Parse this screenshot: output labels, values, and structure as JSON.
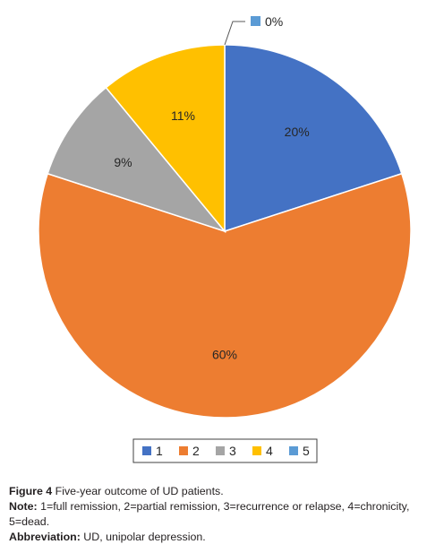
{
  "chart_data": {
    "type": "pie",
    "categories": [
      "1",
      "2",
      "3",
      "4",
      "5"
    ],
    "values": [
      20,
      60,
      9,
      11,
      0
    ],
    "data_labels": [
      "20%",
      "60%",
      "9%",
      "11%",
      "0%"
    ],
    "colors": [
      "#4472c4",
      "#ed7d31",
      "#a5a5a5",
      "#ffc000",
      "#5b9bd5"
    ],
    "start_angle_deg": 0,
    "direction": "clockwise",
    "legend_position": "bottom",
    "title": ""
  },
  "caption": {
    "figure_label": "Figure 4",
    "figure_text": " Five-year outcome of UD patients.",
    "note_label": "Note:",
    "note_text": " 1=full remission, 2=partial remission, 3=recurrence or relapse, 4=chronicity, 5=dead.",
    "abbrev_label": "Abbreviation:",
    "abbrev_text": " UD, unipolar depression."
  }
}
